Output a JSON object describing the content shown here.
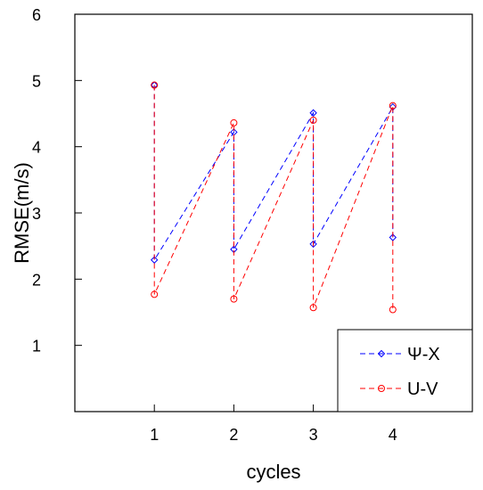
{
  "chart_data": {
    "type": "line",
    "xlabel": "cycles",
    "ylabel": "RMSE(m/s)",
    "xlim": [
      0,
      5
    ],
    "ylim": [
      0,
      6
    ],
    "x_ticks": [
      1,
      2,
      3,
      4
    ],
    "y_ticks": [
      1,
      2,
      3,
      4,
      5,
      6
    ],
    "grid": false,
    "legend_position": "bottom-right",
    "series": [
      {
        "name": "Ψ-Χ",
        "color": "#0000ff",
        "marker": "diamond",
        "linestyle": "dashed",
        "x": [
          1,
          1,
          2,
          2,
          3,
          3,
          4,
          4
        ],
        "y": [
          4.93,
          2.29,
          4.22,
          2.45,
          4.51,
          2.53,
          4.6,
          2.63
        ]
      },
      {
        "name": "U-V",
        "color": "#ff0000",
        "marker": "circle",
        "linestyle": "dashed",
        "x": [
          1,
          1,
          2,
          2,
          3,
          3,
          4,
          4
        ],
        "y": [
          4.93,
          1.77,
          4.36,
          1.7,
          4.4,
          1.57,
          4.62,
          1.54
        ]
      }
    ]
  }
}
